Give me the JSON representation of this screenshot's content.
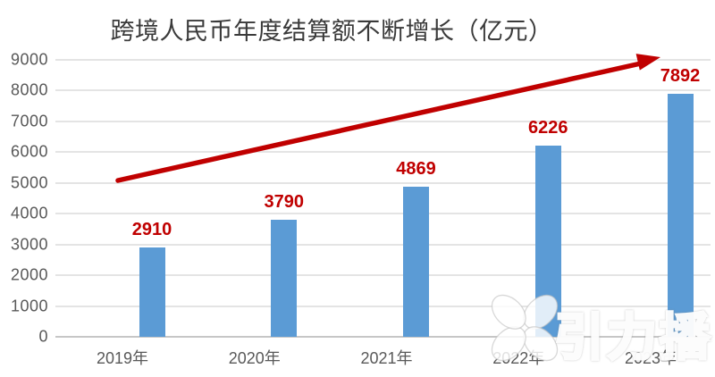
{
  "title": "跨境人民币年度结算额不断增长（亿元）",
  "chart_data": {
    "type": "bar",
    "title": "跨境人民币年度结算额不断增长（亿元）",
    "categories": [
      "2019年",
      "2020年",
      "2021年",
      "2022年",
      "2023年"
    ],
    "values": [
      2910,
      3790,
      4869,
      6226,
      7892
    ],
    "value_labels": [
      "2910",
      "3790",
      "4869",
      "6226",
      "7892"
    ],
    "xlabel": "",
    "ylabel": "",
    "ylim": [
      0,
      9000
    ],
    "yticks": [
      0,
      1000,
      2000,
      3000,
      4000,
      5000,
      6000,
      7000,
      8000,
      9000
    ],
    "grid": true,
    "legend": "none",
    "annotations": [
      {
        "type": "arrow",
        "description": "red rising trend arrow from 5000-level at far left up to top-right above 2023 bar"
      }
    ],
    "colors": {
      "bar": "#5B9BD5",
      "value_label": "#C00000",
      "arrow": "#C00000",
      "grid": "#E4E4E4",
      "axis_line": "#C6C6C6",
      "tick_text": "#595959",
      "title_text": "#3A3A3A"
    }
  },
  "watermark": {
    "logo_text": "引力播",
    "icon": "four-petal-flower-icon",
    "color": "#FFFFFF"
  }
}
